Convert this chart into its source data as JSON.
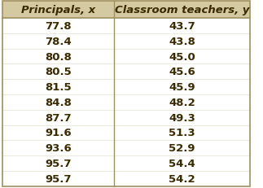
{
  "col1_header": "Principals, x",
  "col2_header": "Classroom teachers, y",
  "x_values": [
    77.8,
    78.4,
    80.8,
    80.5,
    81.5,
    84.8,
    87.7,
    91.6,
    93.6,
    95.7,
    95.7
  ],
  "y_values": [
    43.7,
    43.8,
    45.0,
    45.6,
    45.9,
    48.2,
    49.3,
    51.3,
    52.9,
    54.4,
    54.2
  ],
  "header_bg": "#d4c9a0",
  "header_text_color": "#3a2a00",
  "data_text_color": "#3a2a00",
  "border_color": "#a09060",
  "header_fontsize": 9.5,
  "data_fontsize": 9.5,
  "fig_bg": "#ffffff"
}
